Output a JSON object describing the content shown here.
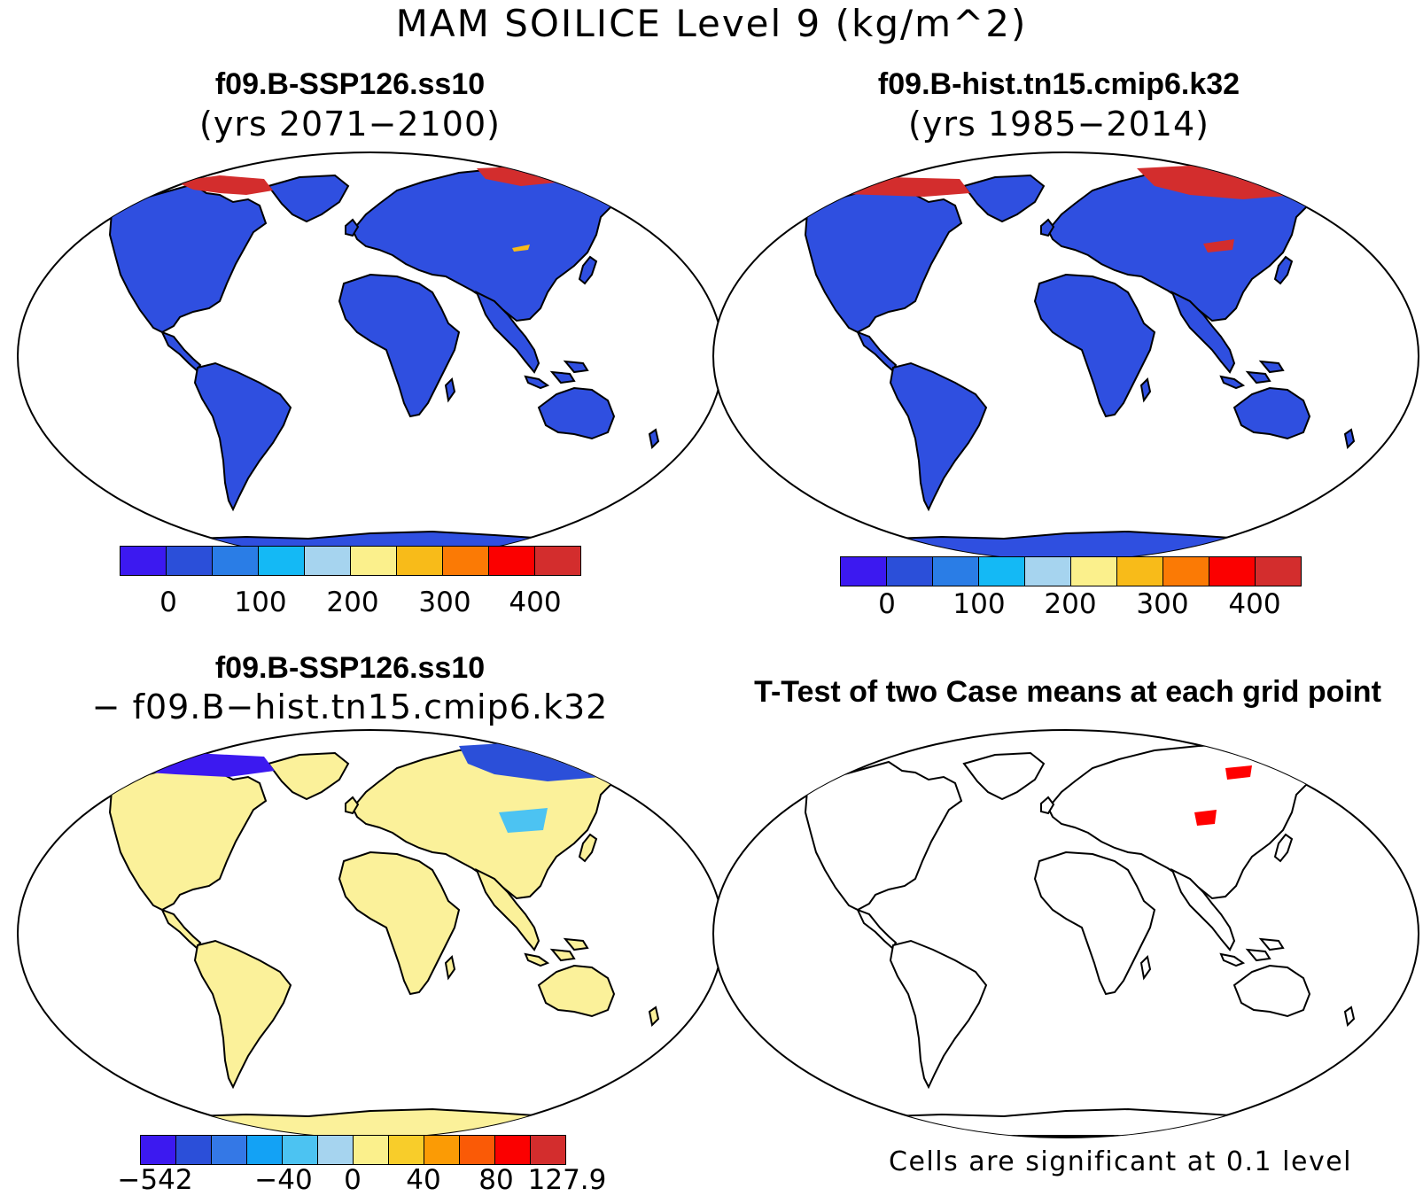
{
  "title": "MAM SOILICE Level 9 (kg/m^2)",
  "colors": {
    "land": "#2f4fe0",
    "diff_land": "#fbf19a",
    "outline": "#000000",
    "ice": "#d32d2d",
    "significant": "#ff0000"
  },
  "panels": {
    "top_left": {
      "title": "f09.B-SSP126.ss10",
      "subtitle": "(yrs 2071−2100)"
    },
    "top_right": {
      "title": "f09.B-hist.tn15.cmip6.k32",
      "subtitle": "(yrs 1985−2014)"
    },
    "bottom_left": {
      "title": "f09.B-SSP126.ss10",
      "subtitle": "− f09.B−hist.tn15.cmip6.k32"
    },
    "bottom_right": {
      "title": "T-Test of two Case means at each grid point",
      "note": "Cells are significant at 0.1 level"
    }
  },
  "colorbars": {
    "abs": {
      "colors": [
        "#3c19f0",
        "#2b4fd9",
        "#2a7de6",
        "#14b9f5",
        "#a6d4ef",
        "#fbf08c",
        "#f8bb19",
        "#fb7a05",
        "#fb0000",
        "#d32d2d"
      ],
      "ticks": [
        "0",
        "100",
        "200",
        "300",
        "400"
      ]
    },
    "diff": {
      "colors": [
        "#3c19f0",
        "#2b4fd9",
        "#3478e6",
        "#13a2f5",
        "#4cc3f2",
        "#a6d4ef",
        "#fbf08c",
        "#f8cd2a",
        "#fb9b05",
        "#fa5a06",
        "#fb0000",
        "#d32d2d"
      ],
      "ticks": [
        "−542",
        "−40",
        "0",
        "40",
        "80",
        "127.9"
      ]
    }
  }
}
